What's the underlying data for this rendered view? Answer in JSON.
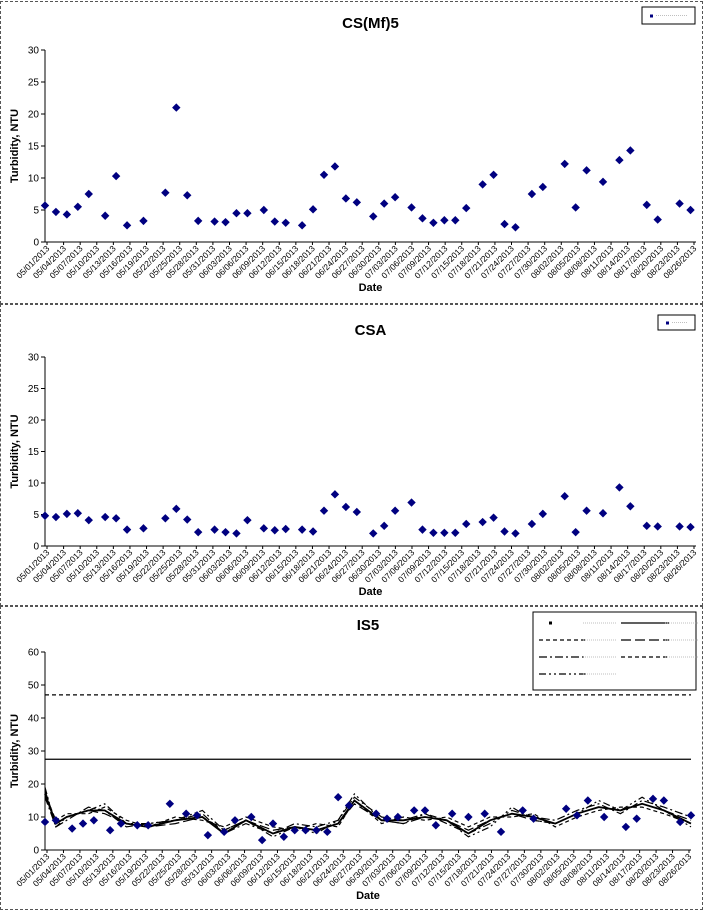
{
  "chart_data": [
    {
      "type": "scatter",
      "title": "CS(Mf)5",
      "xlabel": "Date",
      "ylabel": "Turbidity, NTU",
      "ylim": [
        0,
        30
      ],
      "yticks": [
        0,
        5,
        10,
        15,
        20,
        25,
        30
      ],
      "legend_placement": "top-right",
      "series": [
        {
          "marker": "diamond",
          "color": "#000080",
          "x": [
            "05/01/2013",
            "05/03/2013",
            "05/05/2013",
            "05/07/2013",
            "05/09/2013",
            "05/12/2013",
            "05/14/2013",
            "05/16/2013",
            "05/19/2013",
            "05/23/2013",
            "05/25/2013",
            "05/27/2013",
            "05/29/2013",
            "06/01/2013",
            "06/03/2013",
            "06/05/2013",
            "06/07/2013",
            "06/10/2013",
            "06/12/2013",
            "06/14/2013",
            "06/17/2013",
            "06/19/2013",
            "06/21/2013",
            "06/23/2013",
            "06/25/2013",
            "06/27/2013",
            "06/30/2013",
            "07/02/2013",
            "07/04/2013",
            "07/07/2013",
            "07/09/2013",
            "07/11/2013",
            "07/13/2013",
            "07/15/2013",
            "07/17/2013",
            "07/20/2013",
            "07/22/2013",
            "07/24/2013",
            "07/26/2013",
            "07/29/2013",
            "07/31/2013",
            "08/04/2013",
            "08/06/2013",
            "08/08/2013",
            "08/11/2013",
            "08/14/2013",
            "08/16/2013",
            "08/19/2013",
            "08/21/2013",
            "08/25/2013",
            "08/27/2013"
          ],
          "values": [
            5.7,
            4.7,
            4.3,
            5.5,
            7.5,
            4.1,
            10.3,
            2.6,
            3.3,
            7.7,
            21,
            7.3,
            3.3,
            3.2,
            3.1,
            4.5,
            4.5,
            5,
            3.2,
            3,
            2.6,
            5.1,
            10.5,
            11.8,
            6.8,
            6.2,
            4,
            6,
            7,
            5.4,
            3.7,
            3,
            3.4,
            3.4,
            5.3,
            9,
            10.5,
            2.8,
            2.3,
            7.5,
            8.6,
            12.2,
            5.4,
            11.2,
            9.4,
            12.8,
            14.3,
            5.8,
            3.5,
            6,
            5
          ]
        }
      ],
      "x_tick_labels": [
        "05/01/2013",
        "05/04/2013",
        "05/07/2013",
        "05/10/2013",
        "05/13/2013",
        "05/16/2013",
        "05/19/2013",
        "05/22/2013",
        "05/25/2013",
        "05/28/2013",
        "05/31/2013",
        "06/03/2013",
        "06/06/2013",
        "06/09/2013",
        "06/12/2013",
        "06/15/2013",
        "06/18/2013",
        "06/21/2013",
        "06/24/2013",
        "06/27/2013",
        "06/30/2013",
        "07/03/2013",
        "07/06/2013",
        "07/09/2013",
        "07/12/2013",
        "07/15/2013",
        "07/18/2013",
        "07/21/2013",
        "07/24/2013",
        "07/27/2013",
        "07/30/2013",
        "08/02/2013",
        "08/05/2013",
        "08/08/2013",
        "08/11/2013",
        "08/14/2013",
        "08/17/2013",
        "08/20/2013",
        "08/23/2013",
        "08/26/2013"
      ]
    },
    {
      "type": "scatter",
      "title": "CSA",
      "xlabel": "Date",
      "ylabel": "Turbidity, NTU",
      "ylim": [
        0,
        30
      ],
      "yticks": [
        0,
        5,
        10,
        15,
        20,
        25,
        30
      ],
      "legend_placement": "top-right",
      "series": [
        {
          "marker": "diamond",
          "color": "#000080",
          "x": [
            "05/01/2013",
            "05/03/2013",
            "05/05/2013",
            "05/07/2013",
            "05/09/2013",
            "05/12/2013",
            "05/14/2013",
            "05/16/2013",
            "05/19/2013",
            "05/23/2013",
            "05/25/2013",
            "05/27/2013",
            "05/29/2013",
            "06/01/2013",
            "06/03/2013",
            "06/05/2013",
            "06/07/2013",
            "06/10/2013",
            "06/12/2013",
            "06/14/2013",
            "06/17/2013",
            "06/19/2013",
            "06/21/2013",
            "06/23/2013",
            "06/25/2013",
            "06/27/2013",
            "06/30/2013",
            "07/02/2013",
            "07/04/2013",
            "07/07/2013",
            "07/09/2013",
            "07/11/2013",
            "07/13/2013",
            "07/15/2013",
            "07/17/2013",
            "07/20/2013",
            "07/22/2013",
            "07/24/2013",
            "07/26/2013",
            "07/29/2013",
            "07/31/2013",
            "08/04/2013",
            "08/06/2013",
            "08/08/2013",
            "08/11/2013",
            "08/14/2013",
            "08/16/2013",
            "08/19/2013",
            "08/21/2013",
            "08/25/2013",
            "08/27/2013"
          ],
          "values": [
            4.8,
            4.6,
            5.1,
            5.2,
            4.1,
            4.6,
            4.4,
            2.6,
            2.8,
            4.4,
            5.9,
            4.2,
            2.2,
            2.6,
            2.2,
            2,
            4.1,
            2.8,
            2.5,
            2.7,
            2.6,
            2.3,
            5.6,
            8.2,
            6.2,
            5.4,
            2,
            3.2,
            5.6,
            6.9,
            2.6,
            2.1,
            2.1,
            2.1,
            3.5,
            3.8,
            4.5,
            2.3,
            2,
            3.5,
            5.1,
            7.9,
            2.2,
            5.6,
            5.2,
            9.3,
            6.3,
            3.2,
            3.1,
            3.1,
            3
          ]
        }
      ],
      "x_tick_labels": [
        "05/01/2013",
        "05/04/2013",
        "05/07/2013",
        "05/10/2013",
        "05/13/2013",
        "05/16/2013",
        "05/19/2013",
        "05/22/2013",
        "05/25/2013",
        "05/28/2013",
        "05/31/2013",
        "06/03/2013",
        "06/06/2013",
        "06/09/2013",
        "06/12/2013",
        "06/15/2013",
        "06/18/2013",
        "06/21/2013",
        "06/24/2013",
        "06/27/2013",
        "06/30/2013",
        "07/03/2013",
        "07/06/2013",
        "07/09/2013",
        "07/12/2013",
        "07/15/2013",
        "07/18/2013",
        "07/21/2013",
        "07/24/2013",
        "07/27/2013",
        "07/30/2013",
        "08/02/2013",
        "08/05/2013",
        "08/08/2013",
        "08/11/2013",
        "08/14/2013",
        "08/17/2013",
        "08/20/2013",
        "08/23/2013",
        "08/26/2013"
      ]
    },
    {
      "type": "line",
      "title": "IS5",
      "xlabel": "Date",
      "ylabel": "Turbidity, NTU",
      "ylim": [
        0,
        60
      ],
      "yticks": [
        0,
        10,
        20,
        30,
        40,
        50,
        60
      ],
      "legend_placement": "top-right",
      "scatter": {
        "marker": "diamond",
        "color": "#000080",
        "x": [
          "05/01/2013",
          "05/03/2013",
          "05/06/2013",
          "05/08/2013",
          "05/10/2013",
          "05/13/2013",
          "05/15/2013",
          "05/18/2013",
          "05/20/2013",
          "05/24/2013",
          "05/27/2013",
          "05/29/2013",
          "05/31/2013",
          "06/03/2013",
          "06/05/2013",
          "06/08/2013",
          "06/10/2013",
          "06/12/2013",
          "06/14/2013",
          "06/16/2013",
          "06/18/2013",
          "06/20/2013",
          "06/22/2013",
          "06/24/2013",
          "06/26/2013",
          "07/01/2013",
          "07/03/2013",
          "07/05/2013",
          "07/08/2013",
          "07/10/2013",
          "07/12/2013",
          "07/15/2013",
          "07/18/2013",
          "07/21/2013",
          "07/24/2013",
          "07/28/2013",
          "07/30/2013",
          "08/05/2013",
          "08/07/2013",
          "08/09/2013",
          "08/12/2013",
          "08/16/2013",
          "08/18/2013",
          "08/21/2013",
          "08/23/2013",
          "08/26/2013",
          "08/28/2013"
        ],
        "values": [
          8.5,
          9,
          6.5,
          8,
          9,
          6,
          8,
          7.5,
          7.5,
          14,
          11,
          10.5,
          4.5,
          5.5,
          9,
          10,
          3,
          8,
          4,
          6,
          6,
          6,
          5.5,
          16,
          13.5,
          11,
          9.5,
          10,
          12,
          12,
          7.5,
          11,
          10,
          11,
          5.5,
          12,
          9.5,
          12.5,
          10.5,
          15,
          10,
          7,
          9.5,
          15.5,
          15,
          8.5,
          10.5
        ]
      },
      "reference_lines": [
        {
          "style": "solid",
          "value": 27.5
        },
        {
          "style": "dashed",
          "value": 47
        }
      ],
      "lines": [
        {
          "style": "long-dash",
          "x": [
            "05/01/2013",
            "05/03/2013",
            "05/05/2013",
            "05/09/2013",
            "05/12/2013",
            "05/16/2013",
            "05/20/2013",
            "05/25/2013",
            "05/30/2013",
            "06/03/2013",
            "06/07/2013",
            "06/12/2013",
            "06/16/2013",
            "06/20/2013",
            "06/24/2013",
            "06/27/2013",
            "07/02/2013",
            "07/06/2013",
            "07/10/2013",
            "07/14/2013",
            "07/18/2013",
            "07/22/2013",
            "07/26/2013",
            "07/30/2013",
            "08/03/2013",
            "08/07/2013",
            "08/11/2013",
            "08/15/2013",
            "08/19/2013",
            "08/23/2013",
            "08/28/2013"
          ],
          "values": [
            18,
            8,
            10,
            12,
            11,
            8,
            7,
            8,
            10,
            6,
            9,
            6,
            7,
            6,
            8,
            14,
            9,
            8,
            10,
            9,
            6,
            9,
            11,
            9,
            8,
            11,
            13,
            12,
            14,
            12,
            9
          ]
        },
        {
          "style": "dash-dot",
          "x": [
            "05/01/2013",
            "05/03/2013",
            "05/05/2013",
            "05/09/2013",
            "05/12/2013",
            "05/16/2013",
            "05/20/2013",
            "05/25/2013",
            "05/30/2013",
            "06/03/2013",
            "06/07/2013",
            "06/12/2013",
            "06/16/2013",
            "06/20/2013",
            "06/24/2013",
            "06/27/2013",
            "07/02/2013",
            "07/06/2013",
            "07/10/2013",
            "07/14/2013",
            "07/18/2013",
            "07/22/2013",
            "07/26/2013",
            "07/30/2013",
            "08/03/2013",
            "08/07/2013",
            "08/11/2013",
            "08/15/2013",
            "08/19/2013",
            "08/23/2013",
            "08/28/2013"
          ],
          "values": [
            16,
            7,
            9,
            13,
            12,
            7,
            8,
            9,
            11,
            5,
            8,
            5,
            8,
            7,
            9,
            16,
            10,
            9,
            11,
            8,
            5,
            8,
            12,
            10,
            9,
            12,
            14,
            11,
            15,
            13,
            10
          ]
        },
        {
          "style": "short-dash",
          "x": [
            "05/01/2013",
            "05/03/2013",
            "05/05/2013",
            "05/09/2013",
            "05/12/2013",
            "05/16/2013",
            "05/20/2013",
            "05/25/2013",
            "05/30/2013",
            "06/03/2013",
            "06/07/2013",
            "06/12/2013",
            "06/16/2013",
            "06/20/2013",
            "06/24/2013",
            "06/27/2013",
            "07/02/2013",
            "07/06/2013",
            "07/10/2013",
            "07/14/2013",
            "07/18/2013",
            "07/22/2013",
            "07/26/2013",
            "07/30/2013",
            "08/03/2013",
            "08/07/2013",
            "08/11/2013",
            "08/15/2013",
            "08/19/2013",
            "08/23/2013",
            "08/28/2013"
          ],
          "values": [
            17,
            9,
            11,
            11,
            13,
            9,
            7,
            10,
            9,
            7,
            10,
            7,
            6,
            8,
            7,
            15,
            8,
            10,
            9,
            10,
            7,
            10,
            10,
            11,
            7,
            10,
            12,
            13,
            13,
            11,
            8
          ]
        },
        {
          "style": "dash-dot-dot",
          "x": [
            "05/01/2013",
            "05/03/2013",
            "05/05/2013",
            "05/09/2013",
            "05/12/2013",
            "05/16/2013",
            "05/20/2013",
            "05/25/2013",
            "05/30/2013",
            "06/03/2013",
            "06/07/2013",
            "06/12/2013",
            "06/16/2013",
            "06/20/2013",
            "06/24/2013",
            "06/27/2013",
            "07/02/2013",
            "07/06/2013",
            "07/10/2013",
            "07/14/2013",
            "07/18/2013",
            "07/22/2013",
            "07/26/2013",
            "07/30/2013",
            "08/03/2013",
            "08/07/2013",
            "08/11/2013",
            "08/15/2013",
            "08/19/2013",
            "08/23/2013",
            "08/28/2013"
          ],
          "values": [
            19,
            7,
            10,
            12,
            14,
            8,
            8,
            9,
            12,
            6,
            9,
            4,
            7,
            5,
            9,
            17,
            9,
            8,
            11,
            9,
            4,
            7,
            13,
            9,
            8,
            11,
            15,
            12,
            16,
            12,
            7
          ]
        },
        {
          "style": "solid-thick",
          "x": [
            "05/01/2013",
            "05/03/2013",
            "05/05/2013",
            "05/09/2013",
            "05/12/2013",
            "05/16/2013",
            "05/20/2013",
            "05/25/2013",
            "05/30/2013",
            "06/03/2013",
            "06/07/2013",
            "06/12/2013",
            "06/16/2013",
            "06/20/2013",
            "06/24/2013",
            "06/27/2013",
            "07/02/2013",
            "07/06/2013",
            "07/10/2013",
            "07/14/2013",
            "07/18/2013",
            "07/22/2013",
            "07/26/2013",
            "07/30/2013",
            "08/03/2013",
            "08/07/2013",
            "08/11/2013",
            "08/15/2013",
            "08/19/2013",
            "08/23/2013",
            "08/28/2013"
          ],
          "values": [
            17,
            8,
            10,
            12,
            12,
            8,
            7,
            9,
            10,
            5,
            9,
            5,
            7,
            6,
            8,
            15,
            9,
            9,
            10,
            9,
            5,
            9,
            11,
            10,
            8,
            11,
            13,
            12,
            14,
            12,
            8
          ]
        }
      ],
      "x_tick_labels": [
        "05/01/2013",
        "05/04/2013",
        "05/07/2013",
        "05/10/2013",
        "05/13/2013",
        "05/16/2013",
        "05/19/2013",
        "05/22/2013",
        "05/25/2013",
        "05/28/2013",
        "05/31/2013",
        "06/03/2013",
        "06/06/2013",
        "06/09/2013",
        "06/12/2013",
        "06/15/2013",
        "06/18/2013",
        "06/21/2013",
        "06/24/2013",
        "06/27/2013",
        "06/30/2013",
        "07/03/2013",
        "07/06/2013",
        "07/09/2013",
        "07/12/2013",
        "07/15/2013",
        "07/18/2013",
        "07/21/2013",
        "07/24/2013",
        "07/27/2013",
        "07/30/2013",
        "08/02/2013",
        "08/05/2013",
        "08/08/2013",
        "08/11/2013",
        "08/14/2013",
        "08/17/2013",
        "08/20/2013",
        "08/23/2013",
        "08/26/2013"
      ]
    }
  ]
}
